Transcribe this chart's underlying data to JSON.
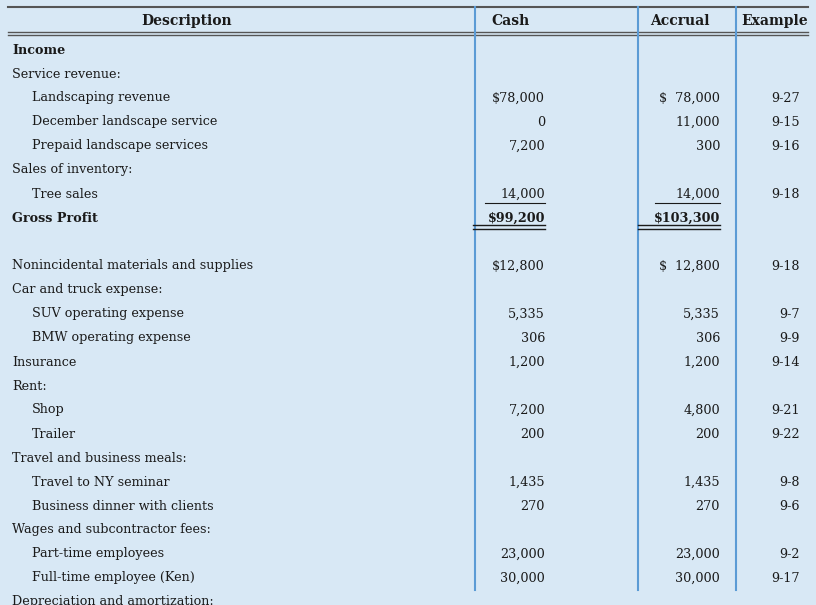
{
  "background_color": "#d8e8f5",
  "col_divider_color": "#5b9bd5",
  "text_color": "#1a1a1a",
  "header_line_color": "#555555",
  "header_fontsize": 10.0,
  "body_fontsize": 9.2,
  "rows": [
    {
      "desc": "Income",
      "cash": "",
      "accrual": "",
      "example": "",
      "bold": true,
      "indent": 0
    },
    {
      "desc": "Service revenue:",
      "cash": "",
      "accrual": "",
      "example": "",
      "bold": false,
      "indent": 0
    },
    {
      "desc": "Landscaping revenue",
      "cash": "$78,000",
      "accrual": "$  78,000",
      "example": "9-27",
      "bold": false,
      "indent": 1
    },
    {
      "desc": "December landscape service",
      "cash": "0",
      "accrual": "11,000",
      "example": "9-15",
      "bold": false,
      "indent": 1
    },
    {
      "desc": "Prepaid landscape services",
      "cash": "7,200",
      "accrual": "300",
      "example": "9-16",
      "bold": false,
      "indent": 1
    },
    {
      "desc": "Sales of inventory:",
      "cash": "",
      "accrual": "",
      "example": "",
      "bold": false,
      "indent": 0
    },
    {
      "desc": "Tree sales",
      "cash": "14,000",
      "accrual": "14,000",
      "example": "9-18",
      "bold": false,
      "indent": 1,
      "underline_cash": true,
      "underline_accrual": true
    },
    {
      "desc": "Gross Profit",
      "cash": "$99,200",
      "accrual": "$103,300",
      "example": "",
      "bold": true,
      "indent": 0,
      "double_underline_cash": true,
      "double_underline_accrual": true
    },
    {
      "desc": "",
      "cash": "",
      "accrual": "",
      "example": "",
      "bold": false,
      "indent": 0,
      "spacer": true
    },
    {
      "desc": "Nonincidental materials and supplies",
      "cash": "$12,800",
      "accrual": "$  12,800",
      "example": "9-18",
      "bold": false,
      "indent": 0
    },
    {
      "desc": "Car and truck expense:",
      "cash": "",
      "accrual": "",
      "example": "",
      "bold": false,
      "indent": 0
    },
    {
      "desc": "SUV operating expense",
      "cash": "5,335",
      "accrual": "5,335",
      "example": "9-7",
      "bold": false,
      "indent": 1
    },
    {
      "desc": "BMW operating expense",
      "cash": "306",
      "accrual": "306",
      "example": "9-9",
      "bold": false,
      "indent": 1
    },
    {
      "desc": "Insurance",
      "cash": "1,200",
      "accrual": "1,200",
      "example": "9-14",
      "bold": false,
      "indent": 0
    },
    {
      "desc": "Rent:",
      "cash": "",
      "accrual": "",
      "example": "",
      "bold": false,
      "indent": 0
    },
    {
      "desc": "Shop",
      "cash": "7,200",
      "accrual": "4,800",
      "example": "9-21",
      "bold": false,
      "indent": 1
    },
    {
      "desc": "Trailer",
      "cash": "200",
      "accrual": "200",
      "example": "9-22",
      "bold": false,
      "indent": 1
    },
    {
      "desc": "Travel and business meals:",
      "cash": "",
      "accrual": "",
      "example": "",
      "bold": false,
      "indent": 0
    },
    {
      "desc": "Travel to NY seminar",
      "cash": "1,435",
      "accrual": "1,435",
      "example": "9-8",
      "bold": false,
      "indent": 1
    },
    {
      "desc": "Business dinner with clients",
      "cash": "270",
      "accrual": "270",
      "example": "9-6",
      "bold": false,
      "indent": 1
    },
    {
      "desc": "Wages and subcontractor fees:",
      "cash": "",
      "accrual": "",
      "example": "",
      "bold": false,
      "indent": 0
    },
    {
      "desc": "Part-time employees",
      "cash": "23,000",
      "accrual": "23,000",
      "example": "9-2",
      "bold": false,
      "indent": 1
    },
    {
      "desc": "Full-time employee (Ken)",
      "cash": "30,000",
      "accrual": "30,000",
      "example": "9-17",
      "bold": false,
      "indent": 1
    },
    {
      "desc": "Depreciation and amortization:",
      "cash": "",
      "accrual": "",
      "example": "",
      "bold": false,
      "indent": 0
    }
  ]
}
